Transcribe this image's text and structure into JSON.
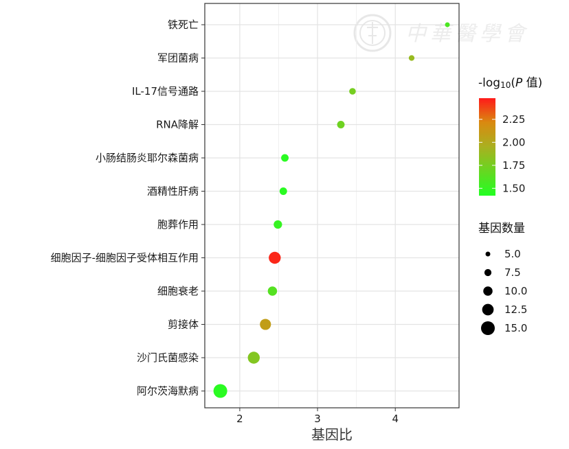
{
  "watermark": {
    "text": "中華醫學會"
  },
  "chart_data": {
    "type": "scatter",
    "xlabel": "基因比",
    "ylabel": "",
    "xlim": [
      1.55,
      4.82
    ],
    "xticks": [
      2,
      3,
      4
    ],
    "grid": true,
    "categories": [
      "铁死亡",
      "军团菌病",
      "IL-17信号通路",
      "RNA降解",
      "小肠结肠炎耶尔森菌病",
      "酒精性肝病",
      "胞葬作用",
      "细胞因子-细胞因子受体相互作用",
      "细胞衰老",
      "剪接体",
      "沙门氏菌感染",
      "阿尔茨海默病"
    ],
    "points": [
      {
        "category": "铁死亡",
        "x": 4.67,
        "count": 5,
        "p": 1.58
      },
      {
        "category": "军团菌病",
        "x": 4.21,
        "count": 6,
        "p": 1.88
      },
      {
        "category": "IL-17信号通路",
        "x": 3.45,
        "count": 7,
        "p": 1.75
      },
      {
        "category": "RNA降解",
        "x": 3.3,
        "count": 8,
        "p": 1.72
      },
      {
        "category": "小肠结肠炎耶尔森菌病",
        "x": 2.58,
        "count": 8,
        "p": 1.45
      },
      {
        "category": "酒精性肝病",
        "x": 2.56,
        "count": 8,
        "p": 1.45
      },
      {
        "category": "胞葬作用",
        "x": 2.49,
        "count": 9,
        "p": 1.5
      },
      {
        "category": "细胞因子-细胞因子受体相互作用",
        "x": 2.45,
        "count": 13,
        "p": 2.45
      },
      {
        "category": "细胞衰老",
        "x": 2.42,
        "count": 10,
        "p": 1.62
      },
      {
        "category": "剪接体",
        "x": 2.33,
        "count": 12,
        "p": 2.08
      },
      {
        "category": "沙门氏菌感染",
        "x": 2.18,
        "count": 13,
        "p": 1.8
      },
      {
        "category": "阿尔茨海默病",
        "x": 1.75,
        "count": 15,
        "p": 1.45
      }
    ],
    "color_legend": {
      "title_prefix": "-log",
      "title_sub": "10",
      "title_open": "(",
      "title_italic": "P",
      "title_suffix": " 值)",
      "min": 1.42,
      "max": 2.48,
      "low_color": "#22ff22",
      "high_color": "#ff1a1a",
      "ticks": [
        1.5,
        1.75,
        2.0,
        2.25
      ],
      "tick_labels": [
        "1.50",
        "1.75",
        "2.00",
        "2.25"
      ]
    },
    "size_legend": {
      "title": "基因数量",
      "values": [
        5,
        7.5,
        10,
        12.5,
        15
      ],
      "labels": [
        "5.0",
        "7.5",
        "10.0",
        "12.5",
        "15.0"
      ]
    }
  }
}
